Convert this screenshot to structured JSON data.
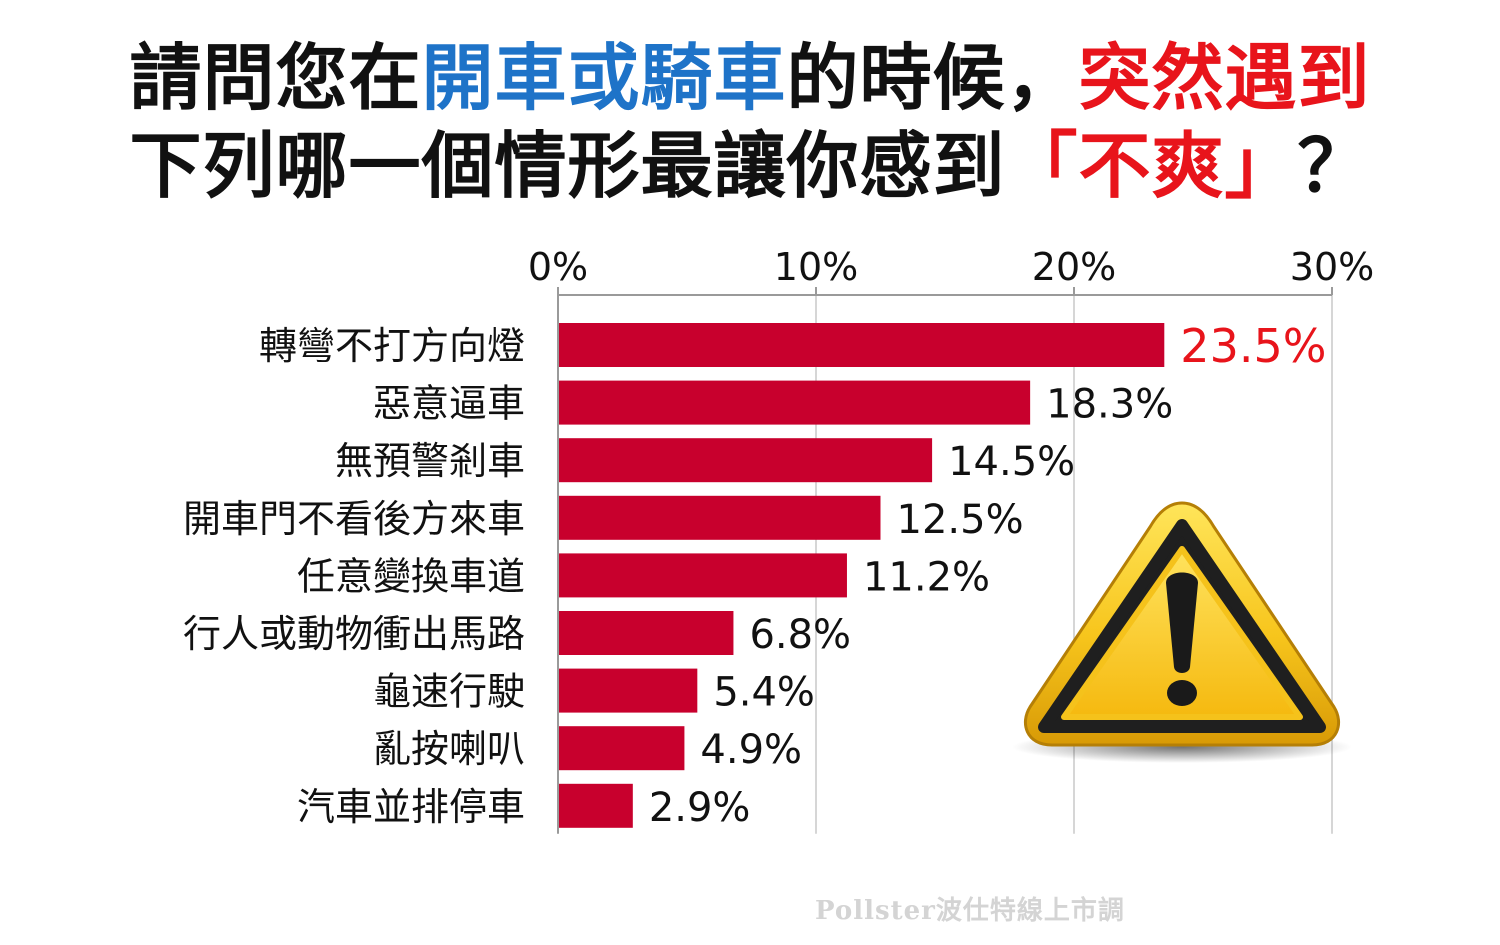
{
  "title": {
    "line1": [
      {
        "text": "請問您在",
        "color": "#111111"
      },
      {
        "text": "開車或騎車",
        "color": "#1e73c8"
      },
      {
        "text": "的時候，",
        "color": "#111111"
      },
      {
        "text": "突然遇到",
        "color": "#e8141b"
      }
    ],
    "line2": [
      {
        "text": "下列哪一個情形最讓你感到",
        "color": "#111111"
      },
      {
        "text": "「不爽」",
        "color": "#e8141b"
      },
      {
        "text": "？",
        "color": "#111111"
      }
    ]
  },
  "chart_data": {
    "type": "bar",
    "orientation": "horizontal",
    "categories": [
      "轉彎不打方向燈",
      "惡意逼車",
      "無預警剎車",
      "開車門不看後方來車",
      "任意變換車道",
      "行人或動物衝出馬路",
      "龜速行駛",
      "亂按喇叭",
      "汽車並排停車"
    ],
    "values": [
      23.5,
      18.3,
      14.5,
      12.5,
      11.2,
      6.8,
      5.4,
      4.9,
      2.9
    ],
    "value_labels": [
      "23.5%",
      "18.3%",
      "14.5%",
      "12.5%",
      "11.2%",
      "6.8%",
      "5.4%",
      "4.9%",
      "2.9%"
    ],
    "highlight_index": 0,
    "xlim": [
      0,
      30
    ],
    "ticks": [
      0,
      10,
      20,
      30
    ],
    "tick_labels": [
      "0%",
      "10%",
      "20%",
      "30%"
    ],
    "axis_position": "top",
    "grid": true,
    "bar_color": "#c8002d",
    "label_color": "#111111",
    "highlight_label_color": "#e8141b"
  },
  "watermark": "Pollster波仕特線上市調",
  "icon": "warning-triangle-icon"
}
